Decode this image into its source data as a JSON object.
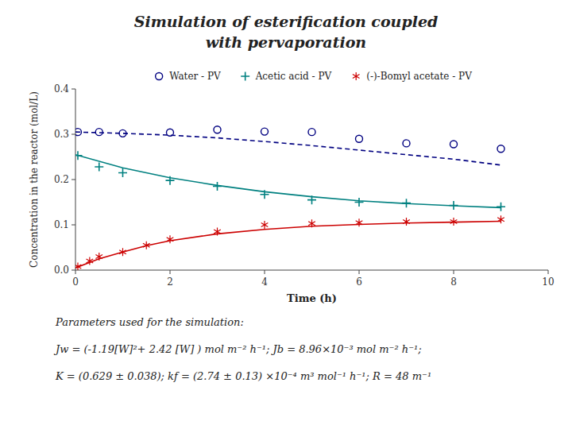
{
  "chart_data": {
    "type": "line",
    "title": [
      "Simulation of esterification coupled",
      "with pervaporation"
    ],
    "x_label": "Time (h)",
    "y_label": "Concentration in the reactor (mol/L)",
    "xlim": [
      0,
      10
    ],
    "ylim": [
      0,
      0.4
    ],
    "xticks": [
      0,
      2,
      4,
      6,
      8,
      10
    ],
    "yticks": [
      {
        "value": 0.0,
        "label": "0.0"
      },
      0.1,
      0.2,
      0.3,
      0.4
    ],
    "grid": false,
    "legend": "top",
    "series": [
      {
        "type": "line",
        "line_style": "dashed",
        "color": "#000080",
        "x": [
          0.0,
          1.0,
          2.0,
          3.0,
          4.0,
          5.0,
          6.0,
          7.0,
          8.0,
          9.0
        ],
        "values": [
          0.305,
          0.302,
          0.298,
          0.292,
          0.284,
          0.275,
          0.265,
          0.255,
          0.245,
          0.232
        ]
      },
      {
        "name": "Water - PV",
        "type": "scatter",
        "marker": "circle",
        "color": "#000080",
        "x": [
          0.05,
          0.5,
          1.0,
          2.0,
          3.0,
          4.0,
          5.0,
          6.0,
          7.0,
          8.0,
          9.0
        ],
        "values": [
          0.305,
          0.305,
          0.302,
          0.304,
          0.31,
          0.306,
          0.305,
          0.29,
          0.28,
          0.278,
          0.268
        ]
      },
      {
        "type": "line",
        "line_style": "solid",
        "color": "#008080",
        "x": [
          0.0,
          1.0,
          2.0,
          3.0,
          4.0,
          5.0,
          6.0,
          7.0,
          8.0,
          9.0
        ],
        "values": [
          0.255,
          0.226,
          0.204,
          0.187,
          0.173,
          0.162,
          0.153,
          0.147,
          0.142,
          0.138
        ]
      },
      {
        "name": "Acetic acid - PV",
        "type": "scatter",
        "marker": "plus",
        "color": "#008080",
        "x": [
          0.05,
          0.5,
          1.0,
          2.0,
          3.0,
          4.0,
          5.0,
          6.0,
          7.0,
          8.0,
          9.0
        ],
        "values": [
          0.253,
          0.228,
          0.215,
          0.198,
          0.185,
          0.167,
          0.155,
          0.15,
          0.148,
          0.143,
          0.14
        ]
      },
      {
        "type": "line",
        "line_style": "solid",
        "color": "#cc0000",
        "x": [
          0.0,
          0.5,
          1.0,
          1.5,
          2.0,
          3.0,
          4.0,
          5.0,
          6.0,
          7.0,
          8.0,
          9.0
        ],
        "values": [
          0.005,
          0.025,
          0.04,
          0.054,
          0.065,
          0.08,
          0.09,
          0.097,
          0.101,
          0.104,
          0.106,
          0.108
        ]
      },
      {
        "name": "(-)-Bomyl acetate - PV",
        "type": "scatter",
        "marker": "asterisk",
        "color": "#cc0000",
        "x": [
          0.05,
          0.3,
          0.5,
          1.0,
          1.5,
          2.0,
          3.0,
          4.0,
          5.0,
          6.0,
          7.0,
          8.0,
          9.0
        ],
        "values": [
          0.008,
          0.02,
          0.03,
          0.04,
          0.055,
          0.068,
          0.085,
          0.1,
          0.103,
          0.105,
          0.107,
          0.107,
          0.112
        ]
      }
    ],
    "annotations": [
      "Parameters used for the simulation:",
      "Jw = (-1.19[W]²+ 2.42 [W] ) mol m⁻² h⁻¹; Jb = 8.96×10⁻³ mol  m⁻² h⁻¹;",
      "K =  (0.629 ± 0.038); kf = (2.74 ± 0.13) ×10⁻⁴ m³ mol⁻¹ h⁻¹; R = 48 m⁻¹"
    ]
  }
}
